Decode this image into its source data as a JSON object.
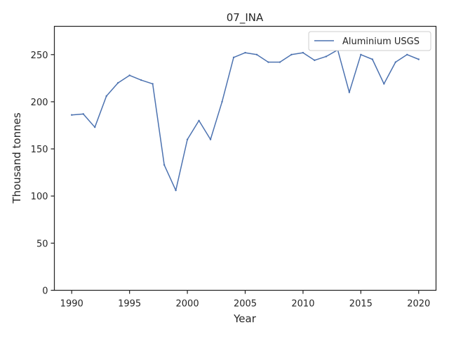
{
  "chart_data": {
    "type": "line",
    "title": "07_INA",
    "xlabel": "Year",
    "ylabel": "Thousand tonnes",
    "xlim": [
      1988.5,
      2021.5
    ],
    "ylim": [
      0,
      280
    ],
    "xticks": [
      1990,
      1995,
      2000,
      2005,
      2010,
      2015,
      2020
    ],
    "yticks": [
      0,
      50,
      100,
      150,
      200,
      250
    ],
    "grid": false,
    "legend_position": "top-right",
    "series": [
      {
        "name": "Aluminium USGS",
        "color": "#4c72b0",
        "x": [
          1990,
          1991,
          1992,
          1993,
          1994,
          1995,
          1996,
          1997,
          1998,
          1999,
          2000,
          2001,
          2002,
          2003,
          2004,
          2005,
          2006,
          2007,
          2008,
          2009,
          2010,
          2011,
          2012,
          2013,
          2014,
          2015,
          2016,
          2017,
          2018,
          2019,
          2020
        ],
        "y": [
          186,
          187,
          173,
          206,
          220,
          228,
          223,
          219,
          133,
          106,
          160,
          180,
          160,
          200,
          247,
          252,
          250,
          242,
          242,
          250,
          252,
          244,
          248,
          255,
          210,
          250,
          245,
          219,
          242,
          250,
          245
        ]
      }
    ]
  }
}
